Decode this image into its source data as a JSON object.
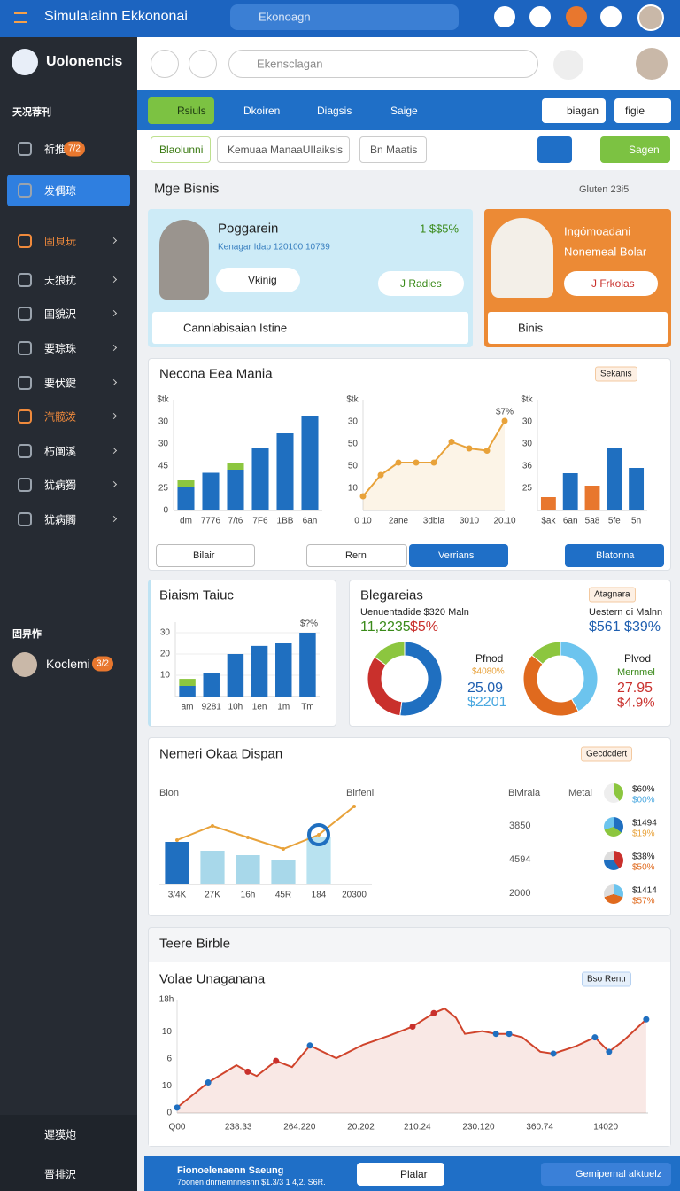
{
  "topbar": {
    "title": "Simulalainn Ekkononai",
    "search": "Ekonoagn"
  },
  "sidebar": {
    "brand": "Uolonencis",
    "section": "天况荐刊",
    "items": [
      {
        "label": "祈推",
        "badge": "7/2"
      },
      {
        "label": "发偶琼"
      },
      {
        "label": "固貝玩",
        "color": "#f08a3c"
      },
      {
        "label": "天狼扰"
      },
      {
        "label": "囯貌沢"
      },
      {
        "label": "要琮珠"
      },
      {
        "label": "要伏鍵"
      },
      {
        "label": "汽髋泼",
        "color": "#f08a3c"
      },
      {
        "label": "朽阐溪"
      },
      {
        "label": "犹病獨"
      },
      {
        "label": "犹病髑"
      }
    ],
    "section2": "固畀怍",
    "profile": {
      "name": "Koclemi",
      "badge": "3/2"
    },
    "footer": [
      "遲獏炮",
      "晋排沢"
    ]
  },
  "header": {
    "search": "Ekensclagan"
  },
  "toolbar": {
    "tabs": [
      "Rsiuls",
      "Dkoiren",
      "Diagsis",
      "Saige"
    ],
    "buttons": [
      "biagan",
      "figie"
    ]
  },
  "filters": {
    "items": [
      "Blaolunni",
      "Kemuaa ManaaUIIaiksis",
      "Bn Maatis"
    ],
    "action": "Sagen"
  },
  "section": {
    "title": "Mge Bisnis",
    "meta": "Gluten 23i5"
  },
  "cards": [
    {
      "name": "Poggarein",
      "sub": "Kenagar Idap  120100 10739",
      "stat": "1 $$5%",
      "chip": "Vkinig",
      "button": "J Radies",
      "link": "Cannlabisaian Istine"
    },
    {
      "line1": "Ingómoadani",
      "line2": "Nonemeal Bolar",
      "button": "J Frkolas",
      "link": "Binis"
    }
  ],
  "chart_data": [
    {
      "type": "bar",
      "title": "Necona Eea Mania",
      "chip": "Sekanis",
      "unit_label": "$tk",
      "stacked": true,
      "categories": [
        "dm",
        "7776",
        "7/t6",
        "7F6",
        "1BB",
        "6an"
      ],
      "series": [
        {
          "color": "#1f6fc0",
          "values": [
            10.4,
            17,
            18.4,
            28,
            34.8,
            42.4
          ]
        },
        {
          "color": "#8cc63f",
          "values": [
            3.2,
            null,
            3.2,
            null,
            null,
            null
          ]
        }
      ],
      "ylim": [
        0,
        50
      ],
      "yticks": [
        0,
        {
          "value": 10,
          "label": "25"
        },
        {
          "value": 20,
          "label": "45"
        },
        30,
        {
          "value": 40,
          "label": "30"
        }
      ],
      "buttons": [
        "Bilair",
        "Rern",
        "Verrians",
        "Blatonna"
      ]
    },
    {
      "type": "line",
      "unit_label": "$tk",
      "annotation": "$7%",
      "area": true,
      "categories": [
        "0 10",
        null,
        "2ane",
        null,
        "3dbia",
        null,
        "3010",
        null,
        "20.10"
      ],
      "series": [
        {
          "color": "#e8a23a",
          "values": [
            6.4,
            16,
            21.6,
            21.6,
            21.6,
            31,
            28,
            27,
            40.4
          ]
        }
      ],
      "ylim": [
        0,
        50
      ],
      "yticks": [
        10,
        {
          "value": 20,
          "label": "50"
        },
        {
          "value": 30,
          "label": "50"
        },
        {
          "value": 40,
          "label": "30"
        }
      ]
    },
    {
      "type": "bar",
      "unit_label": "$tk",
      "categories": [
        "$ak",
        "6an",
        "5a8",
        "5fe",
        "5n"
      ],
      "series": [
        {
          "colors": [
            "#e8772e",
            "#1f6fc0",
            "#e8772e",
            "#1f6fc0",
            "#1f6fc0"
          ],
          "values": [
            6,
            16.8,
            11.2,
            28,
            19.2
          ]
        }
      ],
      "ylim": [
        0,
        50
      ],
      "yticks": [
        {
          "value": 10,
          "label": "25"
        },
        {
          "value": 20,
          "label": "36"
        },
        30,
        {
          "value": 40,
          "label": "30"
        }
      ]
    },
    {
      "type": "bar",
      "title": "Biaism Taiuc",
      "annotation": "$?%",
      "stacked": true,
      "grid": true,
      "categories": [
        "am",
        "9281",
        "10h",
        "1en",
        "1m",
        "Tm"
      ],
      "series": [
        {
          "color": "#1f6fc0",
          "values": [
            5,
            11.2,
            20,
            23.8,
            25,
            30
          ]
        },
        {
          "color": "#8cc63f",
          "values": [
            3.3,
            null,
            null,
            null,
            null,
            null
          ]
        }
      ],
      "ylim": [
        0,
        35
      ],
      "yticks": [
        10,
        20,
        30
      ]
    },
    {
      "type": "pie",
      "title": "Blegareias",
      "chip": "Atagnara",
      "subtitle": "Uenuentadide $320 Maln",
      "big": [
        "11,2235",
        "$5%"
      ],
      "texts": [
        "Pfnod",
        "$4080%",
        "25.09",
        "$2201"
      ],
      "values": [
        52,
        33,
        15
      ],
      "colors": [
        "#1f6fc0",
        "#c9302c",
        "#8cc63f"
      ]
    },
    {
      "type": "pie",
      "subtitle": "Uestern di Malnn",
      "big": [
        "$561 $39%"
      ],
      "texts": [
        "Plvod",
        "Mernmel",
        "27.95",
        "$4.9%"
      ],
      "values": [
        42,
        44,
        14
      ],
      "colors": [
        "#6cc4ee",
        "#e06a1e",
        "#8cc63f"
      ]
    },
    {
      "type": "bar",
      "title": "Nemeri Okaa Dispan",
      "chip": "Gecdcdert",
      "y_label": "Bion",
      "annotation": "Birfeni",
      "highlight_index": 4,
      "categories": [
        "3/4K",
        "27K",
        "16h",
        "45R",
        "184",
        "20300"
      ],
      "series": [
        {
          "colors": [
            "#1f6fc0",
            "#a8d8ea",
            "#a8d8ea",
            "#a8d8ea",
            "#b8e2f0",
            null
          ],
          "values": [
            48,
            38,
            33,
            28,
            53,
            null
          ]
        },
        {
          "type": "line",
          "color": "#e8a23a",
          "values": [
            50,
            66,
            53,
            40,
            56,
            88
          ]
        }
      ],
      "ylim": [
        0,
        100
      ]
    },
    {
      "type": "line",
      "panel_title": "Teere Birble",
      "title": "Volae Unaganana",
      "chip": "Bso Rentı",
      "unit_label": "18h",
      "area": true,
      "x": [
        0,
        6.6,
        12.6,
        15,
        16.9,
        21,
        24.4,
        28.2,
        33.8,
        39.5,
        45.1,
        50,
        54.5,
        56.8,
        59.2,
        61.1,
        64.8,
        67.7,
        70.5,
        73.3,
        77.1,
        79.9,
        84.6,
        88.7,
        91.7,
        94.9,
        99.6
      ],
      "series": [
        {
          "color": "#d0442c",
          "values": [
            2,
            11.3,
            17.7,
            15.3,
            13.7,
            19.3,
            17,
            25,
            20.3,
            25.3,
            28.7,
            32,
            37,
            38.7,
            35.3,
            29.3,
            30.3,
            29.3,
            29.3,
            28,
            22.7,
            22,
            24.7,
            28,
            22.7,
            27,
            34.7
          ],
          "marker_colors": [
            "#1f6fc0",
            "#1f6fc0",
            null,
            "#c9302c",
            null,
            "#c9302c",
            null,
            "#1f6fc0",
            null,
            null,
            null,
            "#c9302c",
            "#c9302c",
            null,
            null,
            null,
            null,
            "#1f6fc0",
            "#1f6fc0",
            null,
            null,
            "#1f6fc0",
            null,
            "#1f6fc0",
            "#1f6fc0",
            null,
            "#1f6fc0"
          ]
        }
      ],
      "xlim": [
        0,
        100
      ],
      "xticks": [
        {
          "value": 0,
          "label": "Q00"
        },
        {
          "value": 13,
          "label": "238.33"
        },
        {
          "value": 26,
          "label": "264.220"
        },
        {
          "value": 39,
          "label": "20.202"
        },
        {
          "value": 51,
          "label": "210.24"
        },
        {
          "value": 64,
          "label": "230.120"
        },
        {
          "value": 77,
          "label": "360.74"
        },
        {
          "value": 91,
          "label": "14020"
        }
      ],
      "ylim": [
        0,
        42
      ],
      "yticks": [
        0,
        10,
        {
          "value": 20,
          "label": "6"
        },
        {
          "value": 30,
          "label": "10"
        }
      ]
    }
  ],
  "dispan_table": {
    "headers": [
      "Bivlraia",
      "Metal"
    ],
    "rows": [
      {
        "labels": [
          "$60%",
          "$00%"
        ]
      },
      {
        "value": "3850",
        "labels": [
          "$1494",
          "$19%"
        ]
      },
      {
        "value": "4594",
        "labels": [
          "$38%",
          "$50%"
        ]
      },
      {
        "value": "2000",
        "labels": [
          "$1414",
          "$57%"
        ]
      }
    ]
  },
  "bottombar": {
    "title": "Fionoelenaenn Saeung",
    "sub": "7oonen dnrnemnnesnn $1.3/3 1 4,2. S6R.",
    "button": "Plalar",
    "user": "Gemipernal alktuelz"
  }
}
